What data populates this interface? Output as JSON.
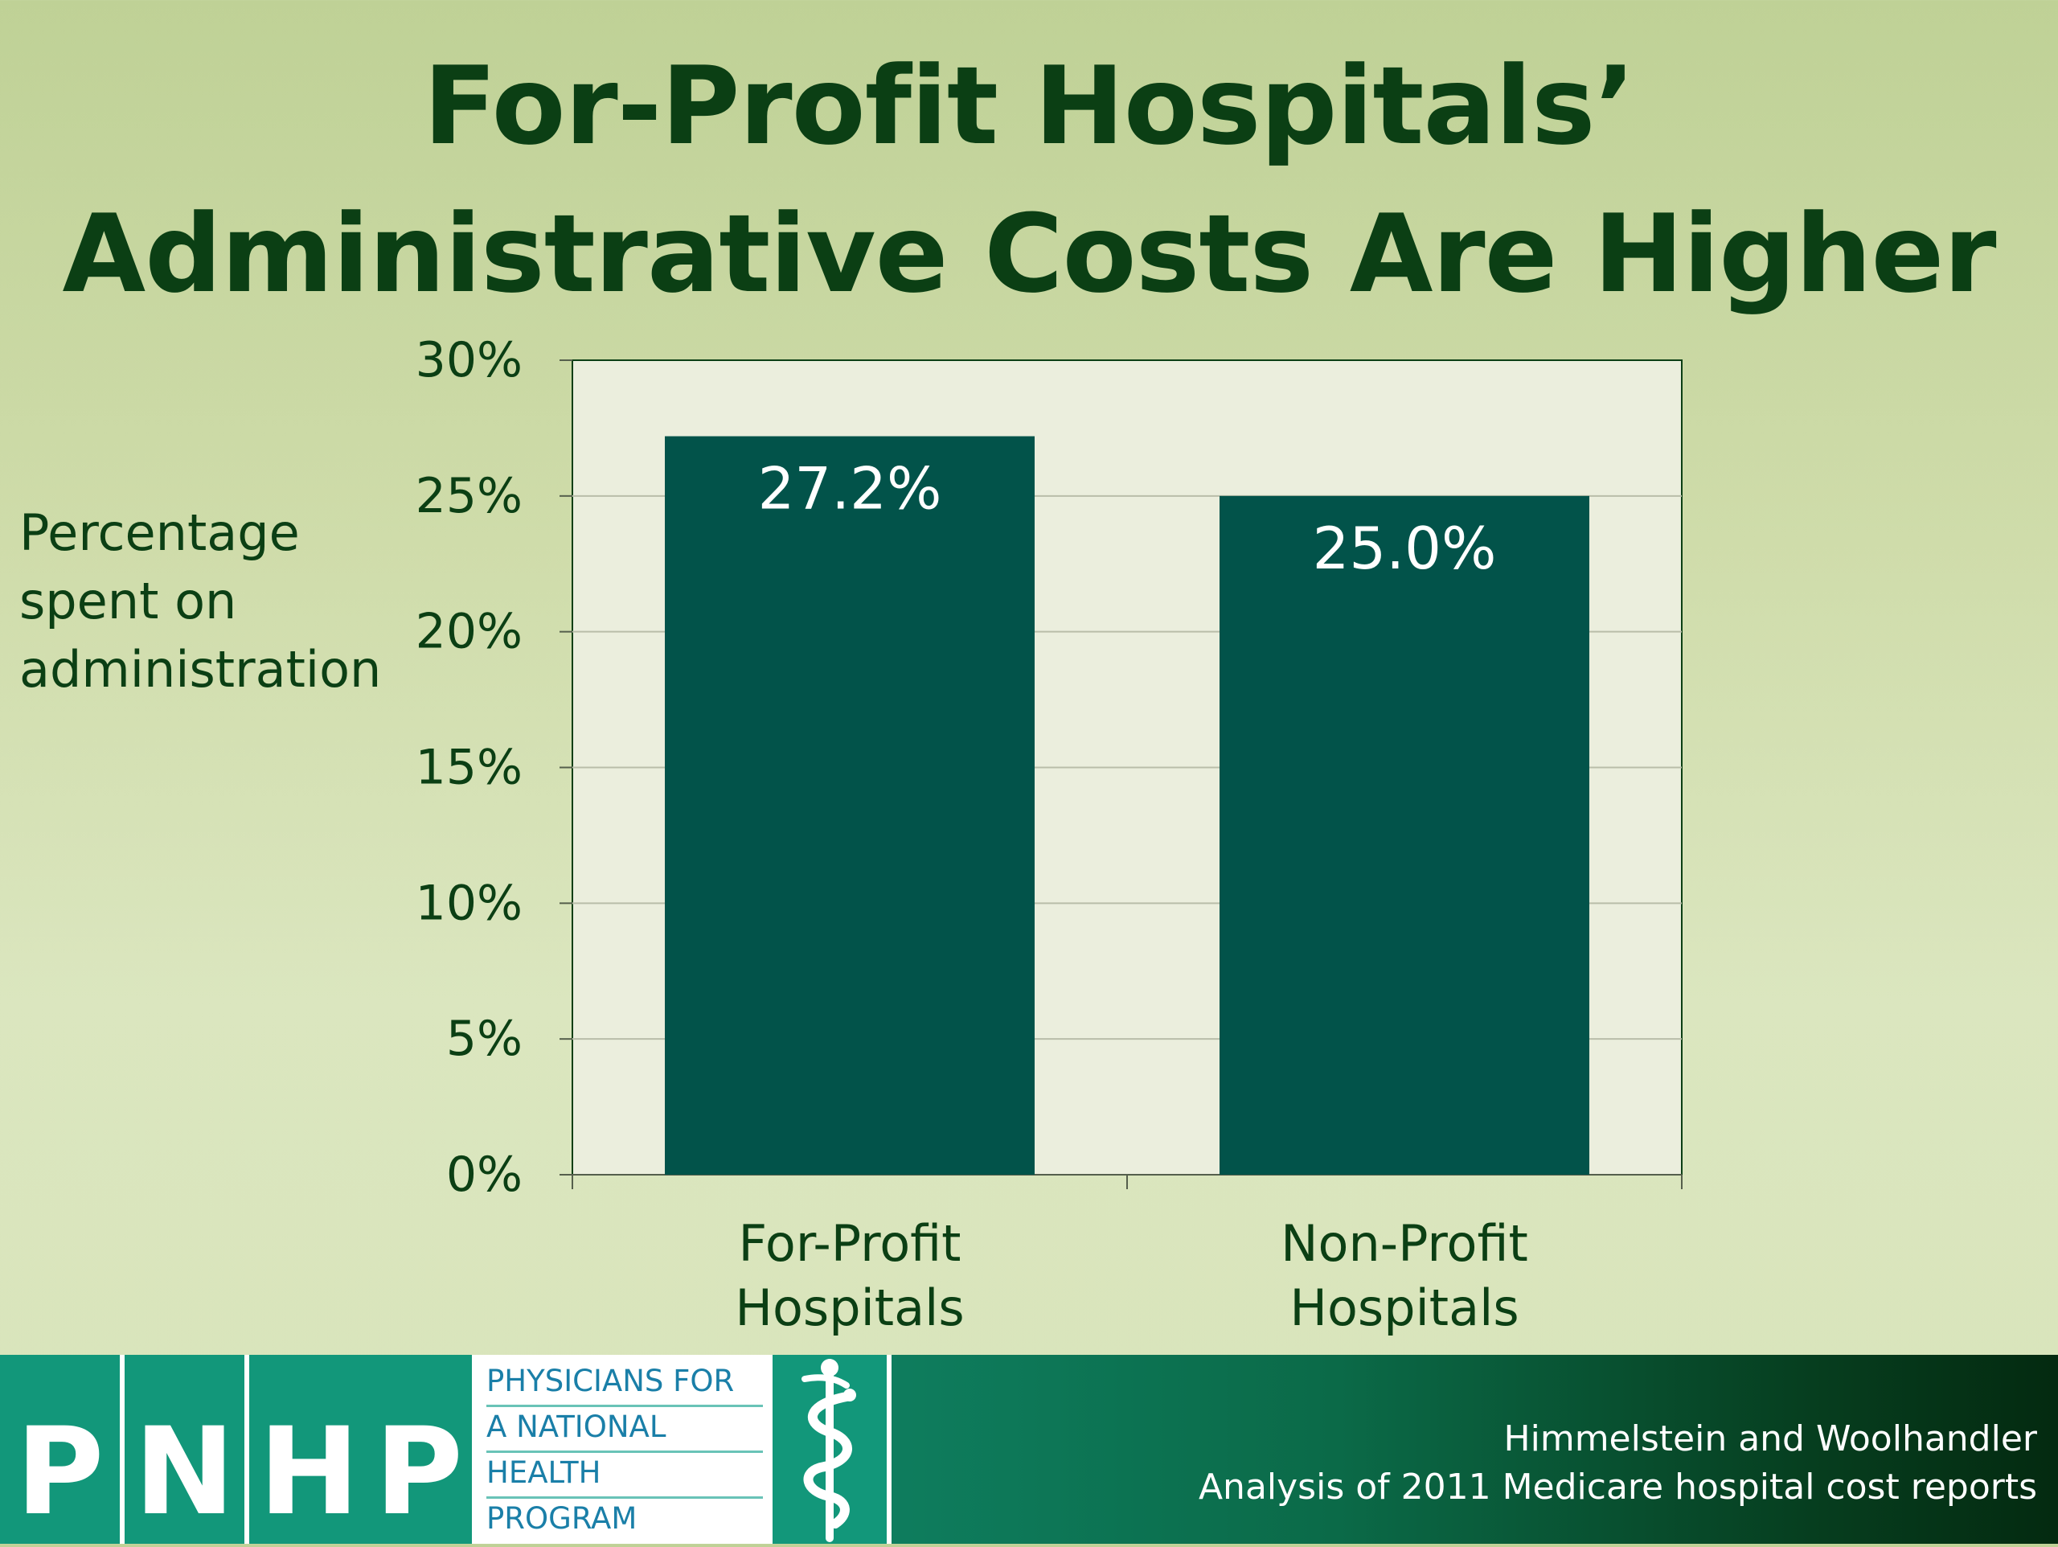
{
  "slide": {
    "title_line1": "For-Profit Hospitals’",
    "title_line2": "Administrative Costs Are Higher",
    "ylabel_line1": "Percentage",
    "ylabel_line2": "spent on",
    "ylabel_line3": "administration",
    "credit_line1": "Himmelstein and Woolhandler",
    "credit_line2": "Analysis of 2011 Medicare hospital cost reports"
  },
  "logo": {
    "letters": [
      "P",
      "N",
      "H",
      "P"
    ],
    "text_lines": [
      "PHYSICIANS FOR",
      "A NATIONAL",
      "HEALTH",
      "PROGRAM"
    ],
    "icon": "caduceus-icon"
  },
  "colors": {
    "title": "#0b3f14",
    "bar": "#02534a",
    "plot_background": "#ebeedd",
    "footer_teal": "#12977a"
  },
  "chart_data": {
    "type": "bar",
    "categories": [
      [
        "For-Profit",
        "Hospitals"
      ],
      [
        "Non-Profit",
        "Hospitals"
      ]
    ],
    "values": [
      27.2,
      25.0
    ],
    "data_labels": [
      "27.2%",
      "25.0%"
    ],
    "title": "For-Profit Hospitals’ Administrative Costs Are Higher",
    "ylabel": "Percentage spent on administration",
    "xlabel": "",
    "ylim": [
      0,
      30
    ],
    "yticks": [
      0,
      5,
      10,
      15,
      20,
      25,
      30
    ],
    "ytick_labels": [
      "0%",
      "5%",
      "10%",
      "15%",
      "20%",
      "25%",
      "30%"
    ],
    "grid": true,
    "legend": "none"
  }
}
